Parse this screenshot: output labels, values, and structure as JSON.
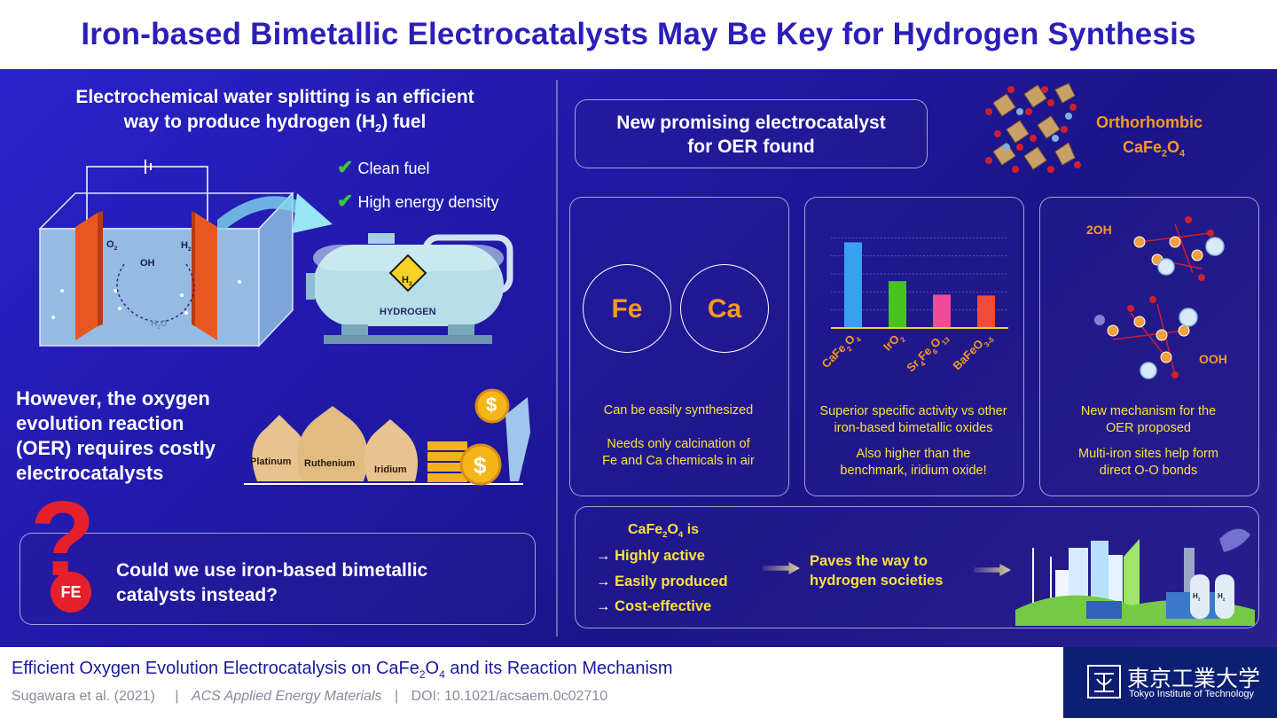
{
  "title": "Iron-based Bimetallic Electrocatalysts May Be Key for Hydrogen Synthesis",
  "left": {
    "heading_line1": "Electrochemical water splitting is an efficient",
    "heading_line2_pre": "way to produce hydrogen (H",
    "heading_line2_sub": "2",
    "heading_line2_post": ") fuel",
    "benefit1": "Clean fuel",
    "benefit2": "High energy density",
    "cell_o2": "O",
    "cell_o2_sub": "2",
    "cell_h2": "H",
    "cell_h2_sub": "2",
    "cell_oh": "OH",
    "cell_h2o": "H",
    "cell_h2o_sub": "2",
    "cell_h2o_post": "O",
    "tank_h2": "H",
    "tank_h2_sub": "2",
    "tank_label": "HYDROGEN",
    "however_lines": [
      "However, the oxygen",
      "evolution reaction",
      "(OER) requires costly",
      "electrocatalysts"
    ],
    "bags": [
      "Platinum",
      "Ruthenium",
      "Iridium"
    ],
    "dollar": "$",
    "question_mark": "?",
    "fe_badge": "FE",
    "question_line1": "Could we use iron-based bimetallic",
    "question_line2": "catalysts instead?"
  },
  "right": {
    "found_line1": "New promising electrocatalyst",
    "found_line2": "for OER found",
    "ortho_line1": "Orthorhombic",
    "ortho_formula_pre": "CaFe",
    "ortho_sub1": "2",
    "ortho_mid": "O",
    "ortho_sub2": "4",
    "fe": "Fe",
    "ca": "Ca",
    "card1_a": "Can be easily synthesized",
    "card1_b1": "Needs only calcination of",
    "card1_b2": "Fe and Ca chemicals in air",
    "card2_a1": "Superior specific activity vs other",
    "card2_a2": "iron-based bimetallic oxides",
    "card2_b1": "Also higher than the",
    "card2_b2": "benchmark, iridium oxide!",
    "card3_2oh": "2OH",
    "card3_ooh": "OOH",
    "card3_a1": "New mechanism for the",
    "card3_a2": "OER proposed",
    "card3_b1": "Multi-iron sites help form",
    "card3_b2": "direct O-O bonds",
    "summary_head_pre": "CaFe",
    "summary_head_sub1": "2",
    "summary_head_mid": "O",
    "summary_head_sub2": "4",
    "summary_head_post": " is",
    "summary_items": [
      "Highly active",
      "Easily produced",
      "Cost-effective"
    ],
    "paves1": "Paves the way to",
    "paves2": "hydrogen societies",
    "plant_h2": "H",
    "plant_h2_sub": "2"
  },
  "chart_data": {
    "type": "bar",
    "categories": [
      "CaFe2O4",
      "IrO2",
      "Sr4Fe6O13",
      "BaFeO3-δ"
    ],
    "values": [
      95,
      52,
      37,
      36
    ],
    "ylim": [
      0,
      120
    ],
    "colors": [
      "#3aa0f0",
      "#47c21f",
      "#f24a9a",
      "#f24a3a"
    ],
    "grid": true,
    "labels_parts": [
      [
        [
          "CaFe",
          ""
        ],
        [
          "2",
          "sub"
        ],
        [
          "O",
          ""
        ],
        [
          "4",
          "sub"
        ]
      ],
      [
        [
          "IrO",
          ""
        ],
        [
          "2",
          "sub"
        ]
      ],
      [
        [
          "Sr",
          ""
        ],
        [
          "4",
          "sub"
        ],
        [
          "Fe",
          ""
        ],
        [
          "6",
          "sub"
        ],
        [
          "O",
          ""
        ],
        [
          "13",
          "sub"
        ]
      ],
      [
        [
          "BaFeO",
          ""
        ],
        [
          "3-δ",
          "sub"
        ]
      ]
    ]
  },
  "footer": {
    "paper_pre": "Efficient Oxygen Evolution Electrocatalysis on CaFe",
    "paper_sub1": "2",
    "paper_mid": "O",
    "paper_sub2": "4",
    "paper_post": " and its Reaction Mechanism",
    "authors": "Sugawara et al. (2021)",
    "sep1": "|",
    "journal": "ACS Applied Energy Materials",
    "sep2": "|",
    "doi": "DOI: 10.1021/acsaem.0c02710",
    "logo_jp": "東京工業大学",
    "logo_en": "Tokyo Institute of Technology"
  },
  "colors": {
    "title": "#2a1fb8",
    "accent_orange": "#f59a21",
    "accent_yellow": "#f9e13c",
    "check": "#3fc73a"
  }
}
